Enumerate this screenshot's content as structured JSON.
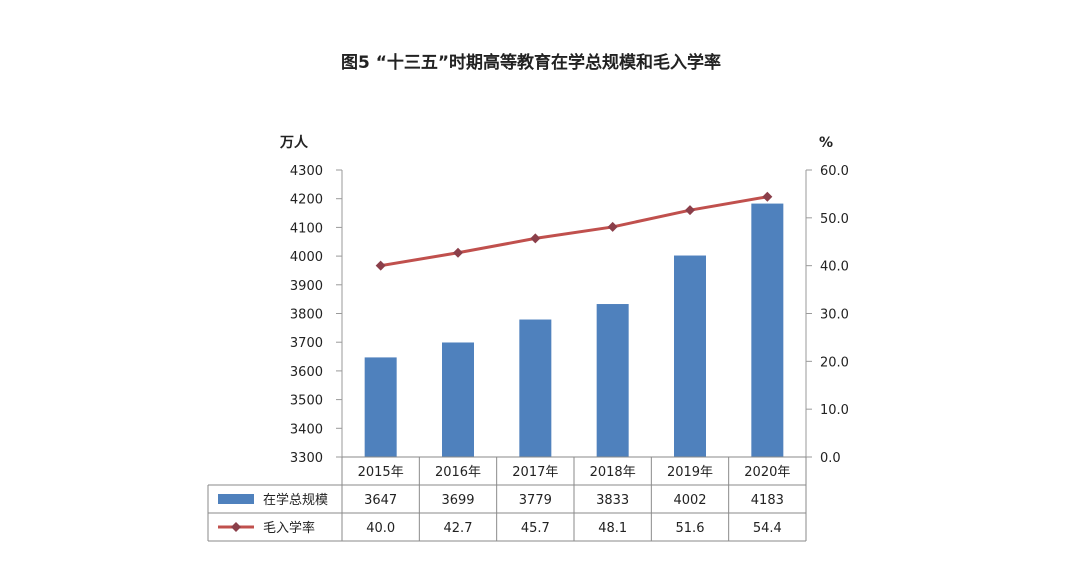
{
  "colors": {
    "bar": "#4F81BD",
    "line": "#C0504D",
    "marker": "#8B3F4A"
  },
  "chart_data": {
    "type": "bar",
    "title": "图5 “十三五”时期高等教育在学总规模和毛入学率",
    "categories": [
      "2015年",
      "2016年",
      "2017年",
      "2018年",
      "2019年",
      "2020年"
    ],
    "left_axis": {
      "unit": "万人",
      "ylim": [
        3300,
        4300
      ],
      "ticks": [
        "4300",
        "4200",
        "4100",
        "4000",
        "3900",
        "3800",
        "3700",
        "3600",
        "3500",
        "3400",
        "3300"
      ]
    },
    "right_axis": {
      "unit": "%",
      "ylim": [
        0,
        60
      ],
      "ticks": [
        "60.0",
        "50.0",
        "40.0",
        "30.0",
        "20.0",
        "10.0",
        "0.0"
      ]
    },
    "series": [
      {
        "name": "在学总规模",
        "type": "bar",
        "axis": "left",
        "values": [
          3647,
          3699,
          3779,
          3833,
          4002,
          4183
        ],
        "labels": [
          "3647",
          "3699",
          "3779",
          "3833",
          "4002",
          "4183"
        ]
      },
      {
        "name": "毛入学率",
        "type": "line",
        "axis": "right",
        "values": [
          40.0,
          42.7,
          45.7,
          48.1,
          51.6,
          54.4
        ],
        "labels": [
          "40.0",
          "42.7",
          "45.7",
          "48.1",
          "51.6",
          "54.4"
        ]
      }
    ],
    "grid": false,
    "legend": "data-table"
  }
}
